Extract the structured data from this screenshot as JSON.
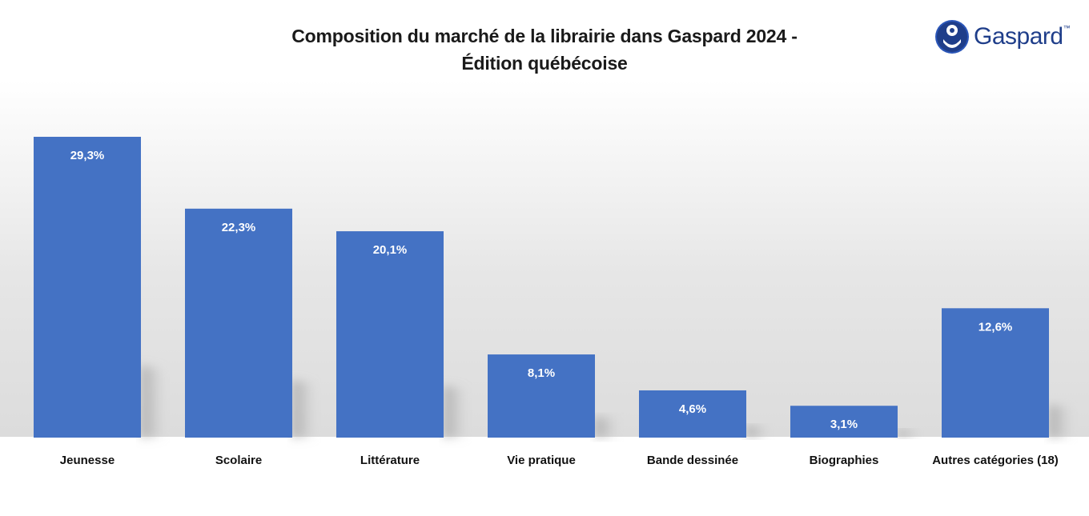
{
  "title_line1": "Composition du marché de la librairie dans Gaspard 2024 -",
  "title_line2": "Édition québécoise",
  "logo": {
    "text": "Gaspard",
    "tm": "™",
    "icon": "gaspard-logo-icon",
    "color": "#1f3e8a"
  },
  "chart_data": {
    "type": "bar",
    "categories": [
      "Jeunesse",
      "Scolaire",
      "Littérature",
      "Vie pratique",
      "Bande dessinée",
      "Biographies",
      "Autres catégories (18)"
    ],
    "values": [
      29.3,
      22.3,
      20.1,
      8.1,
      4.6,
      3.1,
      12.6
    ],
    "data_labels": [
      "29,3%",
      "22,3%",
      "20,1%",
      "8,1%",
      "4,6%",
      "3,1%",
      "12,6%"
    ],
    "unit": "%",
    "bar_color": "#4472c4",
    "grid": false,
    "legend": "none",
    "ylim": [
      0,
      30
    ]
  }
}
